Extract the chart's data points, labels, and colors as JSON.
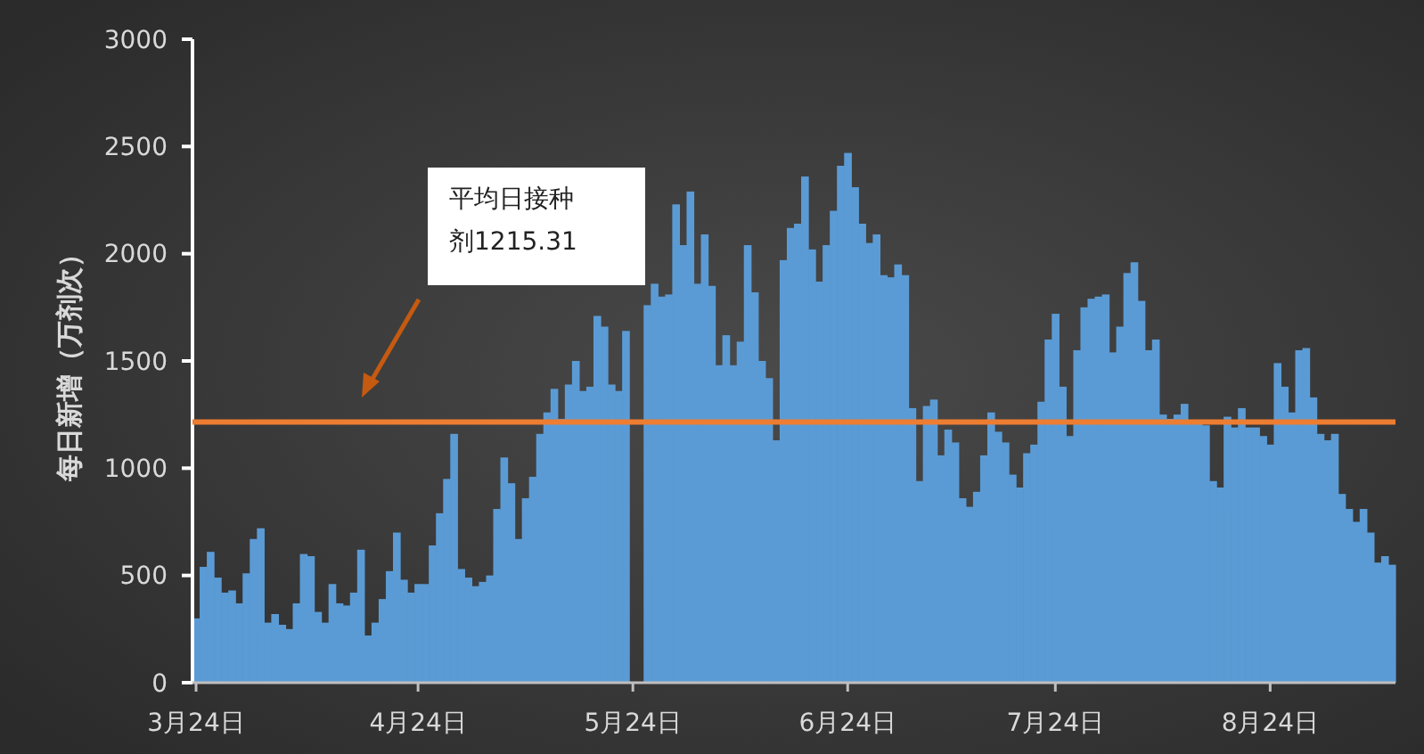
{
  "chart_data": {
    "type": "bar",
    "ylabel": "每日新增（万剂次）",
    "categories": [
      "3月24日",
      null,
      null,
      null,
      null,
      null,
      null,
      null,
      null,
      null,
      null,
      null,
      null,
      null,
      null,
      null,
      null,
      null,
      null,
      null,
      null,
      null,
      null,
      null,
      null,
      null,
      null,
      null,
      null,
      null,
      null,
      "4月24日",
      null,
      null,
      null,
      null,
      null,
      null,
      null,
      null,
      null,
      null,
      null,
      null,
      null,
      null,
      null,
      null,
      null,
      null,
      null,
      null,
      null,
      null,
      null,
      null,
      null,
      null,
      null,
      null,
      null,
      "5月24日",
      null,
      null,
      null,
      null,
      null,
      null,
      null,
      null,
      null,
      null,
      null,
      null,
      null,
      null,
      null,
      null,
      null,
      null,
      null,
      null,
      null,
      null,
      null,
      null,
      null,
      null,
      null,
      null,
      null,
      "6月24日",
      null,
      null,
      null,
      null,
      null,
      null,
      null,
      null,
      null,
      null,
      null,
      null,
      null,
      null,
      null,
      null,
      null,
      null,
      null,
      null,
      null,
      null,
      null,
      null,
      null,
      null,
      null,
      null,
      "7月24日",
      null,
      null,
      null,
      null,
      null,
      null,
      null,
      null,
      null,
      null,
      null,
      null,
      null,
      null,
      null,
      null,
      null,
      null,
      null,
      null,
      null,
      null,
      null,
      null,
      null,
      null,
      null,
      null,
      null,
      "8月24日",
      null,
      null,
      null,
      null,
      null,
      null,
      null,
      null,
      null,
      null,
      null,
      null,
      null,
      null,
      null,
      null,
      null
    ],
    "values": [
      300,
      540,
      610,
      490,
      420,
      430,
      370,
      510,
      670,
      720,
      280,
      320,
      270,
      250,
      370,
      600,
      590,
      330,
      280,
      460,
      370,
      360,
      420,
      620,
      220,
      280,
      390,
      520,
      700,
      480,
      420,
      460,
      460,
      640,
      790,
      950,
      1160,
      530,
      490,
      450,
      470,
      500,
      810,
      1050,
      930,
      670,
      860,
      960,
      1160,
      1260,
      1370,
      1230,
      1390,
      1500,
      1360,
      1380,
      1710,
      1660,
      1390,
      1360,
      1640,
      null,
      null,
      1760,
      1860,
      1800,
      1810,
      2230,
      2040,
      2290,
      1860,
      2090,
      1850,
      1480,
      1620,
      1480,
      1590,
      2040,
      1820,
      1500,
      1420,
      1130,
      1970,
      2120,
      2140,
      2360,
      2020,
      1870,
      2040,
      2200,
      2410,
      2470,
      2310,
      2140,
      2050,
      2090,
      1900,
      1890,
      1950,
      1900,
      1280,
      940,
      1290,
      1320,
      1060,
      1180,
      1120,
      860,
      820,
      890,
      1060,
      1260,
      1170,
      1120,
      970,
      910,
      1070,
      1110,
      1310,
      1600,
      1720,
      1380,
      1150,
      1550,
      1750,
      1790,
      1800,
      1810,
      1540,
      1660,
      1910,
      1960,
      1780,
      1550,
      1600,
      1250,
      1230,
      1250,
      1300,
      1220,
      1210,
      1200,
      940,
      910,
      1240,
      1190,
      1280,
      1190,
      1190,
      1150,
      1110,
      1490,
      1380,
      1260,
      1550,
      1560,
      1330,
      1160,
      1130,
      1160,
      880,
      810,
      750,
      810,
      700,
      560,
      590,
      550
    ],
    "color": "#5b9bd5",
    "ylim": [
      0,
      3000
    ],
    "yticks": [
      0,
      500,
      1000,
      1500,
      2000,
      2500,
      3000
    ],
    "grid": false,
    "ref_lines": [
      {
        "axis": "y",
        "value": 1215.31,
        "color": "#ed7d31"
      }
    ],
    "annotations": [
      "平均日接种剂1215.31"
    ]
  }
}
